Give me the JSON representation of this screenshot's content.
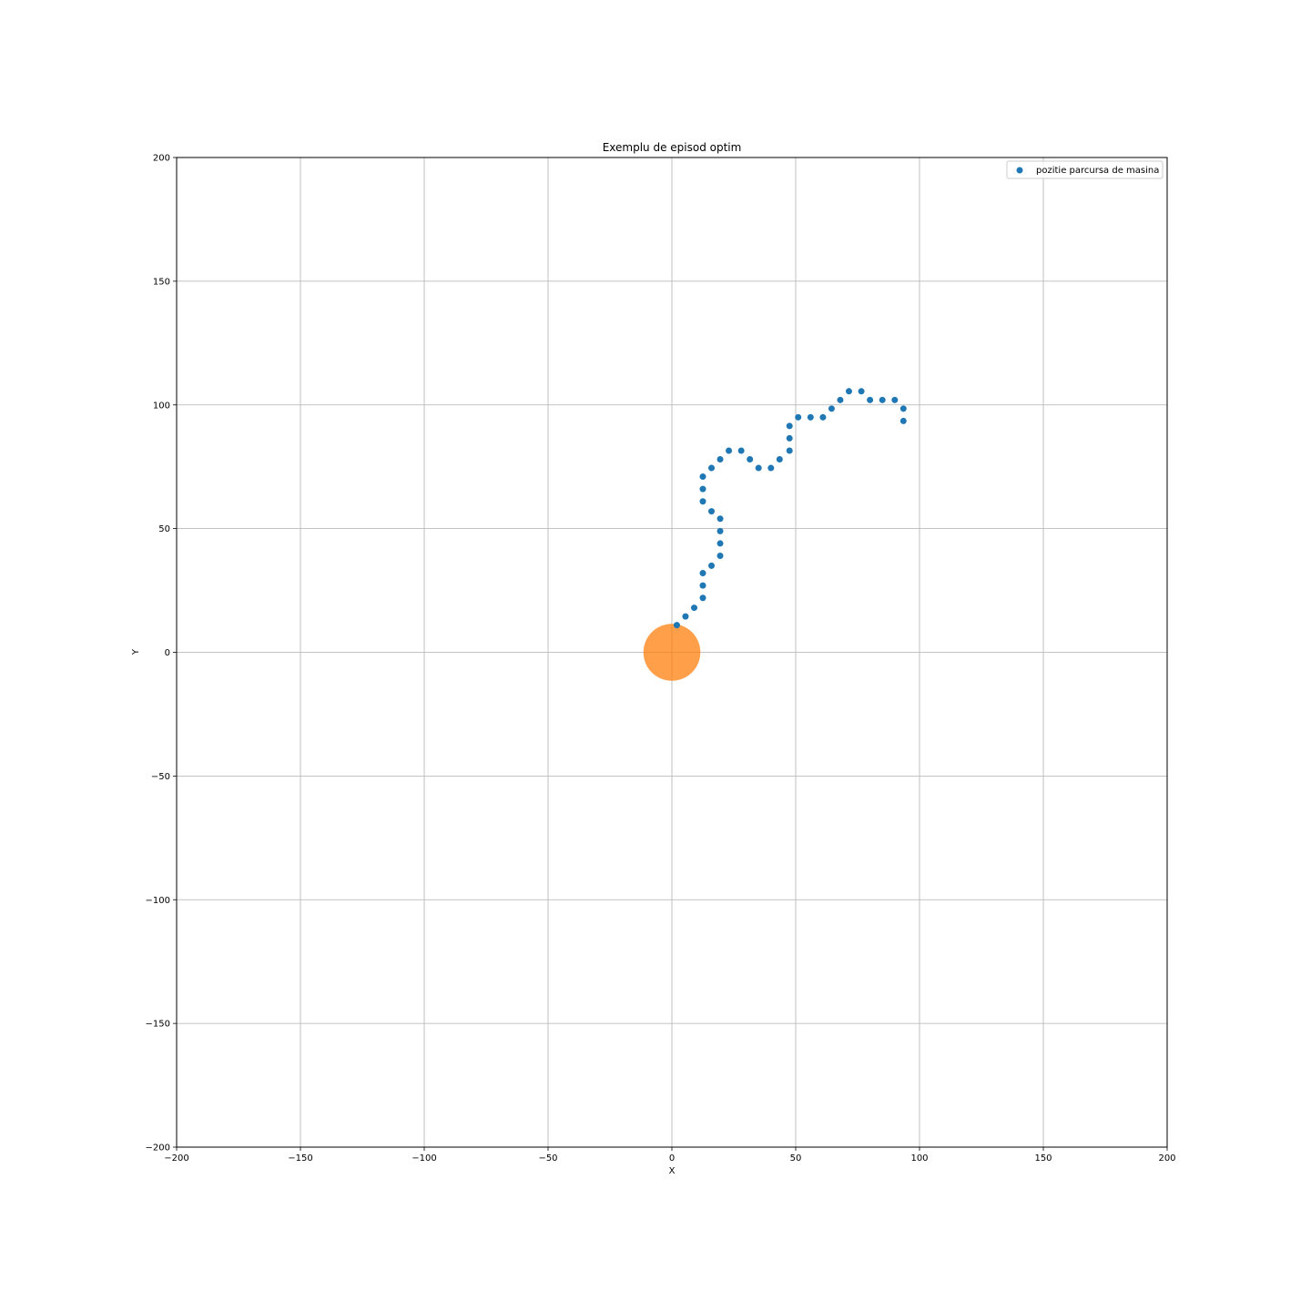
{
  "chart_data": {
    "type": "scatter",
    "title": "Exemplu de episod optim",
    "xlabel": "X",
    "ylabel": "Y",
    "xlim": [
      -200,
      200
    ],
    "ylim": [
      -200,
      200
    ],
    "xticks": [
      -200,
      -150,
      -100,
      -50,
      0,
      50,
      100,
      150,
      200
    ],
    "yticks": [
      -200,
      -150,
      -100,
      -50,
      0,
      50,
      100,
      150,
      200
    ],
    "xtick_labels": [
      "−200",
      "−150",
      "−100",
      "−50",
      "0",
      "50",
      "100",
      "150",
      "200"
    ],
    "ytick_labels": [
      "−200",
      "−150",
      "−100",
      "−50",
      "0",
      "50",
      "100",
      "150",
      "200"
    ],
    "grid": true,
    "legend_position": "top-right",
    "series": [
      {
        "name": "pozitie parcursa de masina",
        "color": "#1f77b4",
        "points": [
          [
            2,
            11
          ],
          [
            5.5,
            14.5
          ],
          [
            9,
            18
          ],
          [
            12.5,
            22
          ],
          [
            12.5,
            27
          ],
          [
            12.5,
            32
          ],
          [
            16,
            35
          ],
          [
            19.5,
            39
          ],
          [
            19.5,
            44
          ],
          [
            19.5,
            49
          ],
          [
            19.5,
            54
          ],
          [
            16,
            57
          ],
          [
            12.5,
            61
          ],
          [
            12.5,
            66
          ],
          [
            12.5,
            71
          ],
          [
            16,
            74.5
          ],
          [
            19.5,
            78
          ],
          [
            23,
            81.5
          ],
          [
            28,
            81.5
          ],
          [
            31.5,
            78
          ],
          [
            35,
            74.5
          ],
          [
            40,
            74.5
          ],
          [
            43.5,
            78
          ],
          [
            47.5,
            81.5
          ],
          [
            47.5,
            86.5
          ],
          [
            47.5,
            91.5
          ],
          [
            51,
            95
          ],
          [
            56,
            95
          ],
          [
            61,
            95
          ],
          [
            64.5,
            98.5
          ],
          [
            68,
            102
          ],
          [
            71.5,
            105.5
          ],
          [
            76.5,
            105.5
          ],
          [
            80,
            102
          ],
          [
            85,
            102
          ],
          [
            90,
            102
          ],
          [
            93.5,
            98.5
          ],
          [
            93.5,
            93.5
          ]
        ]
      }
    ],
    "target": {
      "center": [
        0,
        0
      ],
      "radius": 11.5,
      "color": "#ff7f0e"
    }
  }
}
